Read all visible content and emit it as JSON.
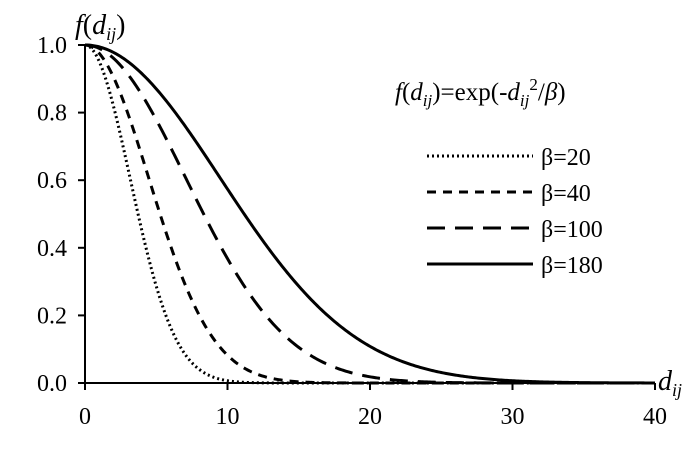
{
  "chart_data": {
    "type": "line",
    "ylabel": {
      "base": "f",
      "open": "(",
      "var": "d",
      "sub": "ij",
      "close": ")"
    },
    "xlabel": {
      "var": "d",
      "sub": "ij"
    },
    "formula": {
      "f": "f",
      "open": "(",
      "d": "d",
      "sub": "ij",
      "close_eq": ")=exp(-",
      "d2": "d",
      "sub2": "ij",
      "sup": "2",
      "slash": "/",
      "beta": "β",
      "end": ")"
    },
    "xlim": [
      0,
      40
    ],
    "ylim": [
      0,
      1
    ],
    "x_ticks": [
      "0",
      "10",
      "20",
      "30",
      "40"
    ],
    "y_ticks": [
      "0.0",
      "0.2",
      "0.4",
      "0.6",
      "0.8",
      "1.0"
    ],
    "grid": false,
    "legend_position": "right",
    "series": [
      {
        "name": "β=20",
        "beta": 20,
        "style": "dotted"
      },
      {
        "name": "β=40",
        "beta": 40,
        "style": "short-dash"
      },
      {
        "name": "β=100",
        "beta": 100,
        "style": "long-dash"
      },
      {
        "name": "β=180",
        "beta": 180,
        "style": "solid"
      }
    ]
  }
}
